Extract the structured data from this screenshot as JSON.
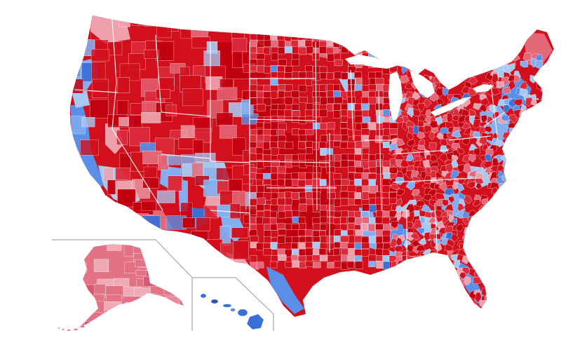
{
  "map": {
    "type": "us-county-choropleth",
    "view": "contiguous-us-with-alaska-and-hawaii-insets",
    "palette": {
      "safe_red": "#c10010",
      "strong_red": "#d20f1c",
      "likely_red": "#dc2a3a",
      "lean_red": "#e46878",
      "tilt_red": "#eea1ac",
      "tilt_blue": "#a9c8f0",
      "lean_blue": "#85aef0",
      "likely_blue": "#5a8fe8",
      "strong_blue": "#3b6fd8",
      "safe_blue": "#2c4fb8"
    },
    "insets": [
      {
        "name": "Alaska",
        "shading": "lean_red"
      },
      {
        "name": "Hawaii",
        "shading": "likely_blue"
      }
    ]
  }
}
